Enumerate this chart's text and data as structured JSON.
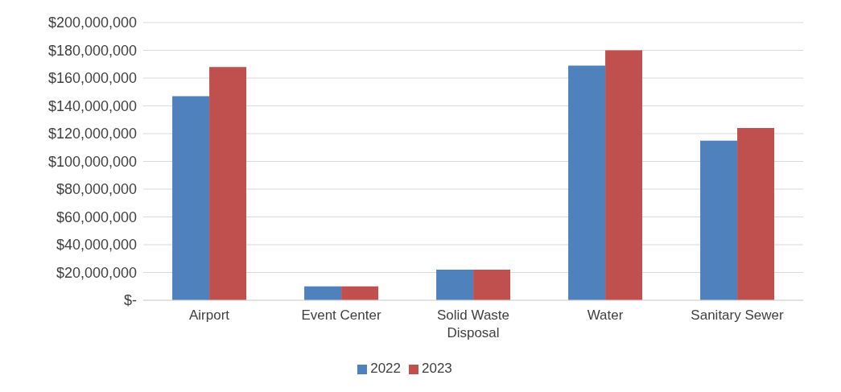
{
  "chart_data": {
    "type": "bar",
    "categories": [
      "Airport",
      "Event Center",
      "Solid Waste Disposal",
      "Water",
      "Sanitary Sewer"
    ],
    "series": [
      {
        "name": "2022",
        "color": "#4f81bd",
        "values": [
          147000000,
          10000000,
          22000000,
          169000000,
          115000000
        ]
      },
      {
        "name": "2023",
        "color": "#c0504d",
        "values": [
          168000000,
          10000000,
          22000000,
          180000000,
          124000000
        ]
      }
    ],
    "ylim": [
      0,
      200000000
    ],
    "yticks": [
      {
        "value": 0,
        "label": "$-"
      },
      {
        "value": 20000000,
        "label": "$20,000,000"
      },
      {
        "value": 40000000,
        "label": "$40,000,000"
      },
      {
        "value": 60000000,
        "label": "$60,000,000"
      },
      {
        "value": 80000000,
        "label": "$80,000,000"
      },
      {
        "value": 100000000,
        "label": "$100,000,000"
      },
      {
        "value": 120000000,
        "label": "$120,000,000"
      },
      {
        "value": 140000000,
        "label": "$140,000,000"
      },
      {
        "value": 160000000,
        "label": "$160,000,000"
      },
      {
        "value": 180000000,
        "label": "$180,000,000"
      },
      {
        "value": 200000000,
        "label": "$200,000,000"
      }
    ],
    "grid": "y",
    "legend": "bottom"
  }
}
